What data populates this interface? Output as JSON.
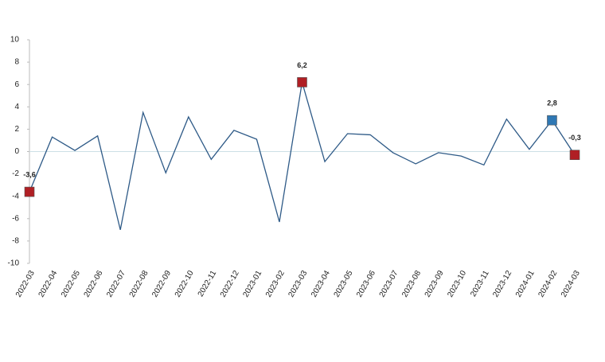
{
  "chart_data": {
    "type": "line",
    "categories": [
      "2022-03",
      "2022-04",
      "2022-05",
      "2022-06",
      "2022-07",
      "2022-08",
      "2022-09",
      "2022-10",
      "2022-11",
      "2022-12",
      "2023-01",
      "2023-02",
      "2023-03",
      "2023-04",
      "2023-05",
      "2023-06",
      "2023-07",
      "2023-08",
      "2023-09",
      "2023-10",
      "2023-11",
      "2023-12",
      "2024-01",
      "2024-02",
      "2024-03"
    ],
    "values": [
      -3.6,
      1.3,
      0.1,
      1.4,
      -7.0,
      3.5,
      -1.9,
      3.1,
      -0.7,
      1.9,
      1.1,
      -6.3,
      6.2,
      -0.9,
      1.6,
      1.5,
      -0.1,
      -1.1,
      -0.1,
      -0.4,
      -1.2,
      2.9,
      0.2,
      2.8,
      -0.3
    ],
    "value_labels": [
      "-3,6",
      null,
      null,
      null,
      null,
      null,
      null,
      null,
      null,
      null,
      null,
      null,
      "6,2",
      null,
      null,
      null,
      null,
      null,
      null,
      null,
      null,
      null,
      null,
      "2,8",
      "-0,3"
    ],
    "marker_colors": [
      "#b01f24",
      null,
      null,
      null,
      null,
      null,
      null,
      null,
      null,
      null,
      null,
      null,
      "#b01f24",
      null,
      null,
      null,
      null,
      null,
      null,
      null,
      null,
      null,
      null,
      "#2f78b4",
      "#b01f24"
    ],
    "color": "#2e5a87",
    "ylim": [
      -10,
      10
    ],
    "yticks": [
      -10,
      -8,
      -6,
      -4,
      -2,
      0,
      2,
      4,
      6,
      8,
      10
    ]
  }
}
